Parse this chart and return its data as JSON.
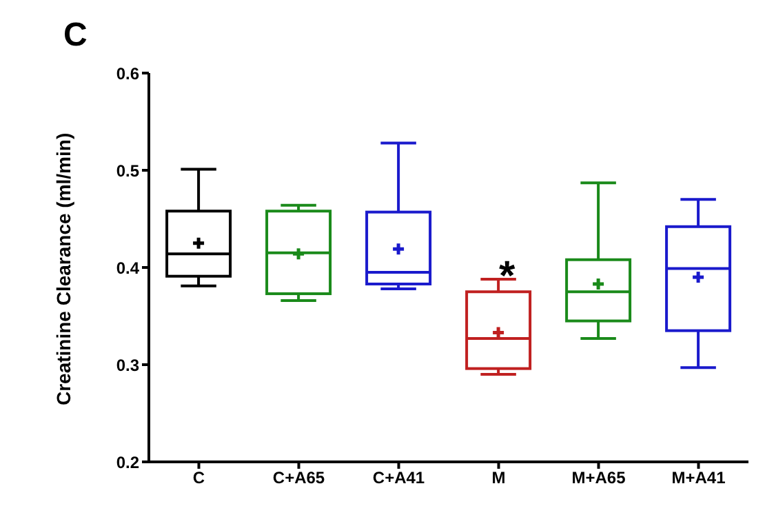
{
  "chart_data": {
    "type": "box",
    "title": "C",
    "ylabel": "Creatinine Clearance (ml/min)",
    "categories": [
      "C",
      "C+A65",
      "C+A41",
      "M",
      "M+A65",
      "M+A41"
    ],
    "colors": [
      "#000000",
      "#1a8a1a",
      "#1a1acc",
      "#c02020",
      "#1a8a1a",
      "#1a1acc"
    ],
    "boxes": [
      {
        "low": 0.381,
        "q1": 0.391,
        "median": 0.414,
        "q3": 0.458,
        "high": 0.501,
        "mean": 0.425
      },
      {
        "low": 0.366,
        "q1": 0.373,
        "median": 0.415,
        "q3": 0.458,
        "high": 0.464,
        "mean": 0.414
      },
      {
        "low": 0.378,
        "q1": 0.383,
        "median": 0.395,
        "q3": 0.457,
        "high": 0.528,
        "mean": 0.419
      },
      {
        "low": 0.29,
        "q1": 0.296,
        "median": 0.327,
        "q3": 0.375,
        "high": 0.388,
        "mean": 0.333
      },
      {
        "low": 0.327,
        "q1": 0.345,
        "median": 0.375,
        "q3": 0.408,
        "high": 0.487,
        "mean": 0.383
      },
      {
        "low": 0.297,
        "q1": 0.335,
        "median": 0.399,
        "q3": 0.442,
        "high": 0.47,
        "mean": 0.39
      }
    ],
    "annotations": [
      "*"
    ],
    "ylim": [
      0.2,
      0.6
    ],
    "yticks": [
      0.2,
      0.3,
      0.4,
      0.5,
      0.6
    ],
    "grid": false,
    "legend": false
  }
}
